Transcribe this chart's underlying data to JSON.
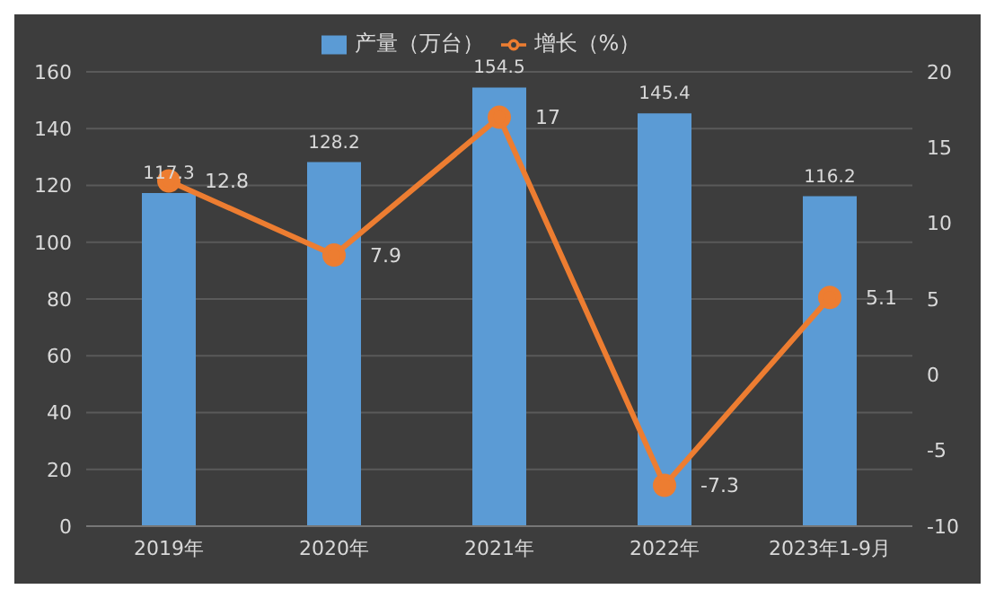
{
  "chart_data": {
    "type": "bar",
    "categories": [
      "2019年",
      "2020年",
      "2021年",
      "2022年",
      "2023年1-9月"
    ],
    "series": [
      {
        "name": "产量（万台）",
        "color": "#5b9bd5",
        "values": [
          117.3,
          128.2,
          154.5,
          145.4,
          116.2
        ]
      },
      {
        "name": "增长（%）",
        "type": "line",
        "axis": "y2",
        "color": "#ed7d31",
        "values": [
          12.8,
          7.9,
          17,
          -7.3,
          5.1
        ]
      }
    ],
    "ylim": [
      0,
      160
    ],
    "yticks": [
      0,
      20,
      40,
      60,
      80,
      100,
      120,
      140,
      160
    ],
    "y2lim": [
      -10,
      20
    ],
    "y2ticks": [
      -10,
      -5,
      0,
      5,
      10,
      15,
      20
    ],
    "grid": "y",
    "legend": "top",
    "data_labels": true,
    "marker": "circle",
    "line_style": "solid"
  }
}
